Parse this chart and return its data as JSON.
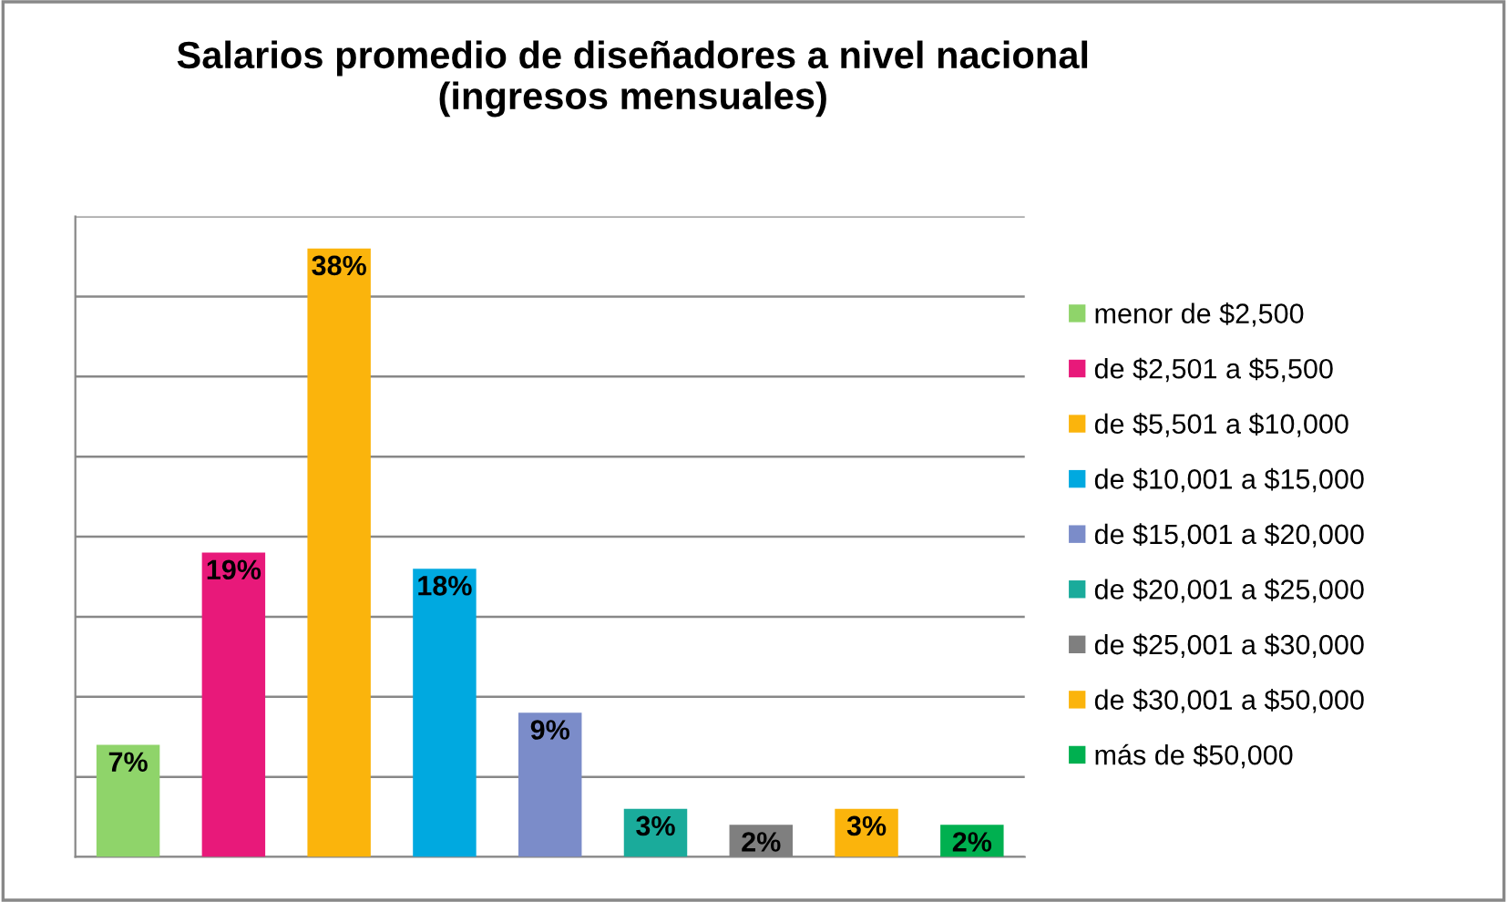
{
  "chart_data": {
    "type": "bar",
    "stacked": true,
    "title": "Salarios promedio de diseñadores a nivel nacional\n(ingresos mensuales)",
    "categories": [
      null,
      null,
      null,
      null,
      null,
      null,
      null,
      null,
      null
    ],
    "series": [
      {
        "name": "menor de $2,500",
        "color": "#8fd46a",
        "values": [
          7,
          0,
          0,
          0,
          0,
          0,
          0,
          0,
          0
        ],
        "value_labels": [
          "7%",
          null,
          null,
          null,
          null,
          null,
          null,
          null,
          null
        ]
      },
      {
        "name": "de $2,501 a $5,500",
        "color": "#e8197a",
        "values": [
          0,
          19,
          0,
          0,
          0,
          0,
          0,
          0,
          0
        ],
        "value_labels": [
          null,
          "19%",
          null,
          null,
          null,
          null,
          null,
          null,
          null
        ]
      },
      {
        "name": "de $5,501 a $10,000",
        "color": "#fbb40c",
        "values": [
          0,
          0,
          38,
          0,
          0,
          0,
          0,
          0,
          0
        ],
        "value_labels": [
          null,
          null,
          "38%",
          null,
          null,
          null,
          null,
          null,
          null
        ]
      },
      {
        "name": "de $10,001 a $15,000",
        "color": "#00a9e0",
        "values": [
          0,
          0,
          0,
          18,
          0,
          0,
          0,
          0,
          0
        ],
        "value_labels": [
          null,
          null,
          null,
          "18%",
          null,
          null,
          null,
          null,
          null
        ]
      },
      {
        "name": "de $15,001 a $20,000",
        "color": "#7b8cc9",
        "values": [
          0,
          0,
          0,
          0,
          9,
          0,
          0,
          0,
          0
        ],
        "value_labels": [
          null,
          null,
          null,
          null,
          "9%",
          null,
          null,
          null,
          null
        ]
      },
      {
        "name": "de $20,001 a $25,000",
        "color": "#1aab9b",
        "values": [
          0,
          0,
          0,
          0,
          0,
          3,
          0,
          0,
          0
        ],
        "value_labels": [
          null,
          null,
          null,
          null,
          null,
          "3%",
          null,
          null,
          null
        ]
      },
      {
        "name": "de $25,001 a $30,000",
        "color": "#7f7f7f",
        "values": [
          0,
          0,
          0,
          0,
          0,
          0,
          2,
          0,
          0
        ],
        "value_labels": [
          null,
          null,
          null,
          null,
          null,
          null,
          "2%",
          null,
          null
        ]
      },
      {
        "name": "de $30,001 a $50,000",
        "color": "#fbb40c",
        "values": [
          0,
          0,
          0,
          0,
          0,
          0,
          0,
          3,
          0
        ],
        "value_labels": [
          null,
          null,
          null,
          null,
          null,
          null,
          null,
          "3%",
          null
        ]
      },
      {
        "name": "más de $50,000",
        "color": "#00b050",
        "values": [
          0,
          0,
          0,
          0,
          0,
          0,
          0,
          0,
          2
        ],
        "value_labels": [
          null,
          null,
          null,
          null,
          null,
          null,
          null,
          null,
          "2%"
        ]
      }
    ],
    "ylim": [
      0,
      40
    ],
    "yticks": [
      {
        "value": 0,
        "label": null
      },
      {
        "value": 5,
        "label": null
      },
      {
        "value": 10,
        "label": null
      },
      {
        "value": 15,
        "label": null
      },
      {
        "value": 20,
        "label": null
      },
      {
        "value": 25,
        "label": null
      },
      {
        "value": 30,
        "label": null
      },
      {
        "value": 35,
        "label": null
      },
      {
        "value": 40,
        "label": null
      }
    ],
    "grid": "y",
    "legend": "right"
  }
}
